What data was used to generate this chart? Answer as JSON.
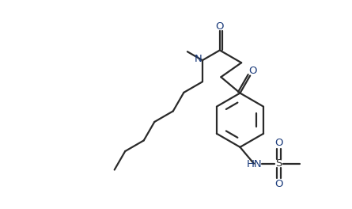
{
  "bg_color": "#ffffff",
  "line_color": "#2a2a2a",
  "n_color": "#1a3a7a",
  "o_color": "#1a3a7a",
  "s_color": "#2a2a2a",
  "line_width": 1.6,
  "font_size": 9.5,
  "figsize": [
    4.45,
    2.64
  ],
  "dpi": 100,
  "xlim": [
    0,
    10
  ],
  "ylim": [
    0,
    6
  ]
}
